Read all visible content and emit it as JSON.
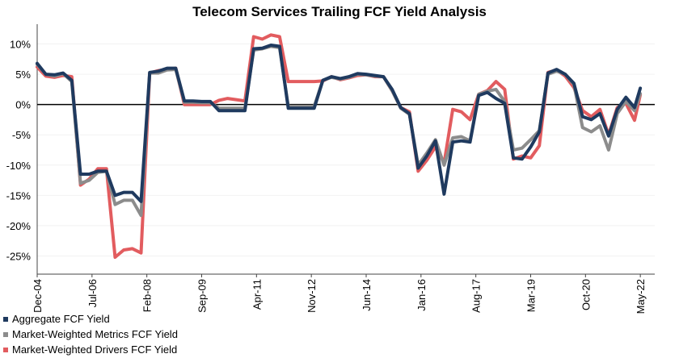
{
  "chart_data": {
    "type": "line",
    "title": "Telecom Services Trailing FCF Yield Analysis",
    "xlabel": "",
    "ylabel": "",
    "ylim": [
      -28,
      13
    ],
    "y_ticks": [
      10,
      5,
      0,
      -5,
      -10,
      -15,
      -20,
      -25
    ],
    "y_tick_format": "percent",
    "x_tick_labels": [
      "Dec-04",
      "Jul-06",
      "Feb-08",
      "Sep-09",
      "Apr-11",
      "Nov-12",
      "Jun-14",
      "Jan-16",
      "Aug-17",
      "Mar-19",
      "Oct-20",
      "May-22"
    ],
    "x_tick_positions": [
      0,
      19,
      38,
      57,
      76,
      95,
      114,
      133,
      152,
      171,
      190,
      209
    ],
    "x_start": "Dec-04",
    "grid": "horizontal",
    "legend_placement": "bottom-left",
    "series": [
      {
        "name": "Aggregate FCF Yield",
        "color": "#1f3a5f",
        "points": [
          [
            0,
            6.8
          ],
          [
            3,
            5
          ],
          [
            6,
            4.9
          ],
          [
            9,
            5.2
          ],
          [
            12,
            4
          ],
          [
            15,
            -11.5
          ],
          [
            18,
            -11.5
          ],
          [
            21,
            -11
          ],
          [
            24,
            -11
          ],
          [
            27,
            -15
          ],
          [
            30,
            -14.5
          ],
          [
            33,
            -14.5
          ],
          [
            36,
            -16
          ],
          [
            39,
            5.3
          ],
          [
            42,
            5.5
          ],
          [
            45,
            6
          ],
          [
            48,
            6
          ],
          [
            51,
            0.6
          ],
          [
            54,
            0.6
          ],
          [
            57,
            0.5
          ],
          [
            60,
            0.5
          ],
          [
            63,
            -1
          ],
          [
            66,
            -1
          ],
          [
            69,
            -1
          ],
          [
            72,
            -1
          ],
          [
            75,
            9.2
          ],
          [
            78,
            9.3
          ],
          [
            81,
            9.8
          ],
          [
            84,
            9.6
          ],
          [
            87,
            -0.6
          ],
          [
            90,
            -0.6
          ],
          [
            93,
            -0.6
          ],
          [
            96,
            -0.6
          ],
          [
            99,
            4
          ],
          [
            102,
            4.6
          ],
          [
            105,
            4.3
          ],
          [
            108,
            4.6
          ],
          [
            111,
            5.1
          ],
          [
            114,
            5
          ],
          [
            117,
            4.8
          ],
          [
            120,
            4.6
          ],
          [
            123,
            2.5
          ],
          [
            126,
            -0.5
          ],
          [
            129,
            -1.5
          ],
          [
            132,
            -10.5
          ],
          [
            135,
            -8.5
          ],
          [
            138,
            -6
          ],
          [
            141,
            -14.8
          ],
          [
            144,
            -6.2
          ],
          [
            147,
            -6
          ],
          [
            150,
            -6.2
          ],
          [
            153,
            1.5
          ],
          [
            156,
            2
          ],
          [
            159,
            1
          ],
          [
            162,
            0.2
          ],
          [
            165,
            -8.8
          ],
          [
            168,
            -9
          ],
          [
            171,
            -7
          ],
          [
            174,
            -4.5
          ],
          [
            177,
            5.2
          ],
          [
            180,
            5.8
          ],
          [
            183,
            5
          ],
          [
            186,
            3.5
          ],
          [
            189,
            -2
          ],
          [
            192,
            -2.5
          ],
          [
            195,
            -1.5
          ],
          [
            198,
            -5.2
          ],
          [
            201,
            -0.8
          ],
          [
            204,
            1.2
          ],
          [
            207,
            -0.5
          ],
          [
            209,
            2.7
          ]
        ]
      },
      {
        "name": "Market-Weighted Metrics FCF Yield",
        "color": "#8c8c8c",
        "points": [
          [
            0,
            6.6
          ],
          [
            3,
            5
          ],
          [
            6,
            4.7
          ],
          [
            9,
            5.1
          ],
          [
            12,
            3.8
          ],
          [
            15,
            -13
          ],
          [
            18,
            -12.5
          ],
          [
            21,
            -11.2
          ],
          [
            24,
            -11
          ],
          [
            27,
            -16.5
          ],
          [
            30,
            -15.8
          ],
          [
            33,
            -15.8
          ],
          [
            36,
            -18.3
          ],
          [
            39,
            5.2
          ],
          [
            42,
            5.2
          ],
          [
            45,
            5.7
          ],
          [
            48,
            5.8
          ],
          [
            51,
            0.4
          ],
          [
            54,
            0.4
          ],
          [
            57,
            0.3
          ],
          [
            60,
            0.3
          ],
          [
            63,
            -0.6
          ],
          [
            66,
            -0.6
          ],
          [
            69,
            -0.6
          ],
          [
            72,
            -0.6
          ],
          [
            75,
            9
          ],
          [
            78,
            9.2
          ],
          [
            81,
            9.6
          ],
          [
            84,
            9.4
          ],
          [
            87,
            -0.3
          ],
          [
            90,
            -0.3
          ],
          [
            93,
            -0.3
          ],
          [
            96,
            -0.3
          ],
          [
            99,
            4
          ],
          [
            102,
            4.5
          ],
          [
            105,
            4.2
          ],
          [
            108,
            4.5
          ],
          [
            111,
            5
          ],
          [
            114,
            4.9
          ],
          [
            117,
            4.7
          ],
          [
            120,
            4.6
          ],
          [
            123,
            2.3
          ],
          [
            126,
            -0.6
          ],
          [
            129,
            -1.6
          ],
          [
            132,
            -10
          ],
          [
            135,
            -8
          ],
          [
            138,
            -5.8
          ],
          [
            141,
            -10
          ],
          [
            144,
            -5.5
          ],
          [
            147,
            -5.3
          ],
          [
            150,
            -6
          ],
          [
            153,
            1.7
          ],
          [
            156,
            2.2
          ],
          [
            159,
            2.5
          ],
          [
            162,
            0.5
          ],
          [
            165,
            -7.5
          ],
          [
            168,
            -7.2
          ],
          [
            171,
            -5.8
          ],
          [
            174,
            -4.3
          ],
          [
            177,
            5
          ],
          [
            180,
            5.5
          ],
          [
            183,
            5
          ],
          [
            186,
            3.3
          ],
          [
            189,
            -3.8
          ],
          [
            192,
            -4.5
          ],
          [
            195,
            -3.5
          ],
          [
            198,
            -7.5
          ],
          [
            201,
            -1.5
          ],
          [
            204,
            0.5
          ],
          [
            207,
            -1
          ],
          [
            209,
            1.8
          ]
        ]
      },
      {
        "name": "Market-Weighted Drivers FCF Yield",
        "color": "#e25c5f",
        "points": [
          [
            0,
            6.2
          ],
          [
            3,
            4.7
          ],
          [
            6,
            4.5
          ],
          [
            9,
            4.8
          ],
          [
            12,
            4.6
          ],
          [
            15,
            -13.3
          ],
          [
            18,
            -12.3
          ],
          [
            21,
            -10.6
          ],
          [
            24,
            -10.6
          ],
          [
            27,
            -25.2
          ],
          [
            30,
            -24
          ],
          [
            33,
            -23.8
          ],
          [
            36,
            -24.5
          ],
          [
            39,
            5.2
          ],
          [
            42,
            5.6
          ],
          [
            45,
            5.8
          ],
          [
            48,
            6
          ],
          [
            51,
            0
          ],
          [
            54,
            0
          ],
          [
            57,
            0
          ],
          [
            60,
            0
          ],
          [
            63,
            0.7
          ],
          [
            66,
            1
          ],
          [
            69,
            0.8
          ],
          [
            72,
            0.6
          ],
          [
            75,
            11.2
          ],
          [
            78,
            10.8
          ],
          [
            81,
            11.5
          ],
          [
            84,
            11.2
          ],
          [
            87,
            3.8
          ],
          [
            90,
            3.8
          ],
          [
            93,
            3.8
          ],
          [
            96,
            3.8
          ],
          [
            99,
            3.9
          ],
          [
            102,
            4.6
          ],
          [
            105,
            4.1
          ],
          [
            108,
            4.4
          ],
          [
            111,
            4.8
          ],
          [
            114,
            4.9
          ],
          [
            117,
            4.6
          ],
          [
            120,
            4.6
          ],
          [
            123,
            2.3
          ],
          [
            126,
            -0.5
          ],
          [
            129,
            -1.2
          ],
          [
            132,
            -11
          ],
          [
            135,
            -9.2
          ],
          [
            138,
            -7
          ],
          [
            141,
            -9.7
          ],
          [
            144,
            -0.8
          ],
          [
            147,
            -1.2
          ],
          [
            150,
            -2.5
          ],
          [
            153,
            1.7
          ],
          [
            156,
            2.3
          ],
          [
            159,
            3.8
          ],
          [
            162,
            2.5
          ],
          [
            165,
            -9
          ],
          [
            168,
            -8.5
          ],
          [
            171,
            -8.8
          ],
          [
            174,
            -6.8
          ],
          [
            177,
            5.3
          ],
          [
            180,
            5.7
          ],
          [
            183,
            4.7
          ],
          [
            186,
            2.8
          ],
          [
            189,
            -1
          ],
          [
            192,
            -2
          ],
          [
            195,
            -0.8
          ],
          [
            198,
            -5
          ],
          [
            201,
            -0.5
          ],
          [
            204,
            0.2
          ],
          [
            207,
            -2.6
          ],
          [
            209,
            1.6
          ]
        ]
      }
    ]
  }
}
